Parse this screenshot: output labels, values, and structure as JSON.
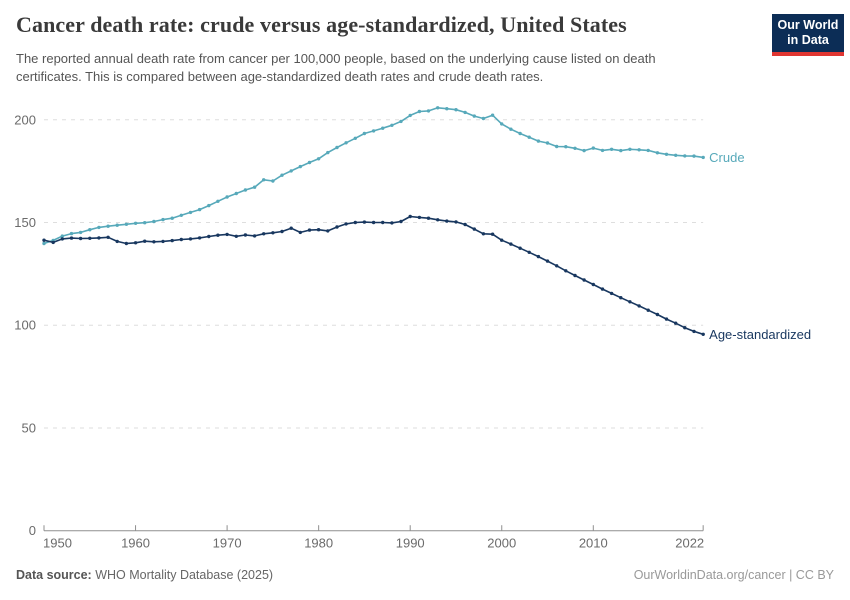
{
  "header": {
    "title": "Cancer death rate: crude versus age-standardized, United States",
    "subtitle": "The reported annual death rate from cancer per 100,000 people, based on the underlying cause listed on death certificates. This is compared between age-standardized death rates and crude death rates.",
    "logo": {
      "line1": "Our World",
      "line2": "in Data"
    }
  },
  "chart_data": {
    "type": "line",
    "title": "Cancer death rate: crude versus age-standardized, United States",
    "xlabel": "",
    "ylabel": "",
    "xlim": [
      1950,
      2022
    ],
    "ylim": [
      0,
      207
    ],
    "grid": "horizontal-dashed",
    "legend": "line-end-labels",
    "yticks": [
      0,
      50,
      100,
      150,
      200
    ],
    "xticks": [
      1950,
      1960,
      1970,
      1980,
      1990,
      2000,
      2010,
      2022
    ],
    "x": [
      1950,
      1951,
      1952,
      1953,
      1954,
      1955,
      1956,
      1957,
      1958,
      1959,
      1960,
      1961,
      1962,
      1963,
      1964,
      1965,
      1966,
      1967,
      1968,
      1969,
      1970,
      1971,
      1972,
      1973,
      1974,
      1975,
      1976,
      1977,
      1978,
      1979,
      1980,
      1981,
      1982,
      1983,
      1984,
      1985,
      1986,
      1987,
      1988,
      1989,
      1990,
      1991,
      1992,
      1993,
      1994,
      1995,
      1996,
      1997,
      1998,
      1999,
      2000,
      2001,
      2002,
      2003,
      2004,
      2005,
      2006,
      2007,
      2008,
      2009,
      2010,
      2011,
      2012,
      2013,
      2014,
      2015,
      2016,
      2017,
      2018,
      2019,
      2020,
      2021,
      2022
    ],
    "series": [
      {
        "name": "Crude",
        "color": "#57A9BA",
        "values": [
          139.8,
          141.3,
          143.4,
          144.6,
          145.2,
          146.5,
          147.6,
          148.2,
          148.7,
          149.1,
          149.6,
          149.9,
          150.5,
          151.4,
          152.1,
          153.5,
          154.9,
          156.3,
          158.2,
          160.3,
          162.4,
          164.1,
          165.8,
          167.2,
          170.8,
          170.2,
          173.0,
          175.1,
          177.2,
          179.2,
          181.0,
          184.0,
          186.5,
          188.8,
          191.0,
          193.3,
          194.6,
          195.9,
          197.3,
          199.2,
          202.1,
          204.0,
          204.3,
          205.8,
          205.4,
          204.9,
          203.6,
          201.8,
          200.6,
          202.2,
          198.0,
          195.4,
          193.3,
          191.5,
          189.6,
          188.7,
          187.0,
          186.9,
          186.1,
          185.0,
          186.2,
          185.1,
          185.6,
          185.0,
          185.6,
          185.4,
          185.1,
          183.9,
          183.2,
          182.7,
          182.4,
          182.3,
          181.7
        ]
      },
      {
        "name": "Age-standardized",
        "color": "#18375F",
        "values": [
          141.4,
          140.3,
          142.0,
          142.4,
          142.2,
          142.3,
          142.5,
          142.8,
          140.8,
          139.8,
          140.1,
          140.9,
          140.6,
          140.8,
          141.2,
          141.7,
          142.0,
          142.5,
          143.2,
          143.8,
          144.2,
          143.3,
          143.9,
          143.5,
          144.5,
          145.0,
          145.6,
          147.2,
          145.2,
          146.3,
          146.5,
          145.9,
          147.8,
          149.3,
          150.0,
          150.2,
          150.0,
          150.0,
          149.8,
          150.5,
          152.9,
          152.5,
          152.1,
          151.3,
          150.7,
          150.3,
          149.0,
          146.8,
          144.5,
          144.3,
          141.4,
          139.5,
          137.5,
          135.5,
          133.4,
          131.2,
          128.9,
          126.5,
          124.2,
          122.0,
          119.8,
          117.6,
          115.5,
          113.4,
          111.4,
          109.4,
          107.3,
          105.2,
          103.0,
          101.0,
          98.8,
          97.0,
          95.6
        ]
      }
    ]
  },
  "colors": {
    "crude": "#57A9BA",
    "age_standardized": "#18375F",
    "gridline": "#DEDEDE",
    "axis": "#8F8F8F",
    "tick_label": "#6B6B6B",
    "logo_bg": "#0C2D56",
    "logo_stripe": "#E03531"
  },
  "footer": {
    "source_label": "Data source:",
    "source_value": "WHO Mortality Database (2025)",
    "credit": "OurWorldinData.org/cancer | CC BY"
  }
}
